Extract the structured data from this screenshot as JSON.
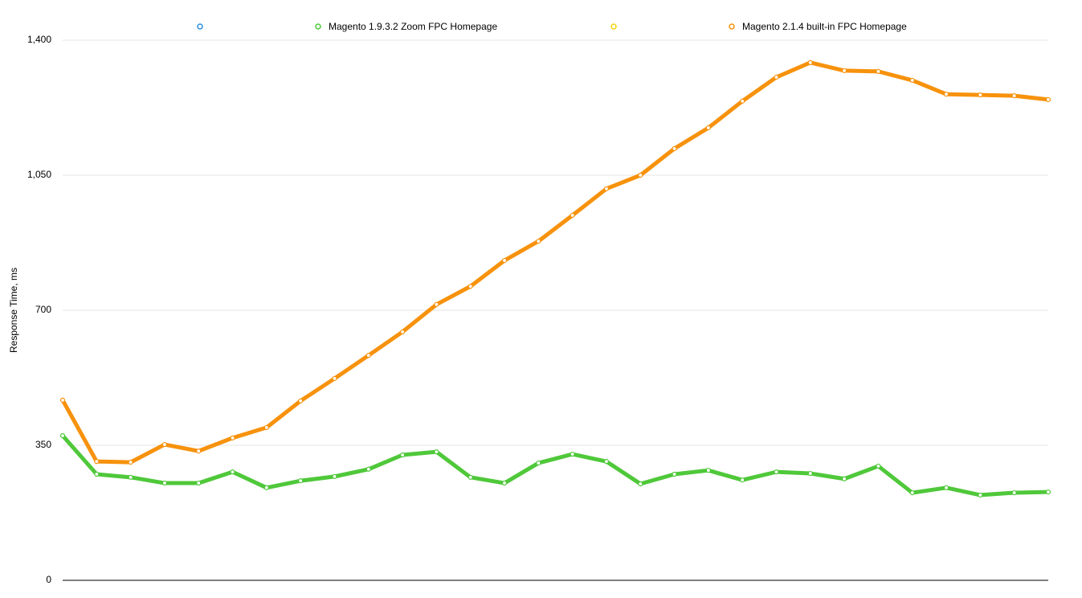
{
  "chart_data": {
    "type": "line",
    "ylabel": "Response Time, ms",
    "ylim": [
      0,
      1400
    ],
    "yticks": [
      0,
      350,
      700,
      {
        "value": 1050,
        "label": "1,050"
      },
      {
        "value": 1400,
        "label": "1,400"
      }
    ],
    "grid": true,
    "legend": "top",
    "series": [
      {
        "name": "Magento 1.9.3.2 Zoom FPC Homepage",
        "color": "#4fc83a",
        "values": [
          375,
          275,
          267,
          252,
          252,
          281,
          240,
          258,
          269,
          288,
          325,
          333,
          267,
          252,
          304,
          327,
          308,
          250,
          275,
          285,
          260,
          281,
          277,
          263,
          296,
          227,
          240,
          221,
          227,
          229
        ]
      },
      {
        "name": "Magento 2.1.4 built-in FPC Homepage",
        "color": "#f7920d",
        "values": [
          467,
          308,
          306,
          352,
          335,
          369,
          396,
          465,
          523,
          583,
          644,
          715,
          762,
          829,
          879,
          946,
          1015,
          1050,
          1119,
          1173,
          1242,
          1304,
          1342,
          1321,
          1319,
          1296,
          1260,
          1258,
          1256,
          1246
        ]
      }
    ]
  }
}
